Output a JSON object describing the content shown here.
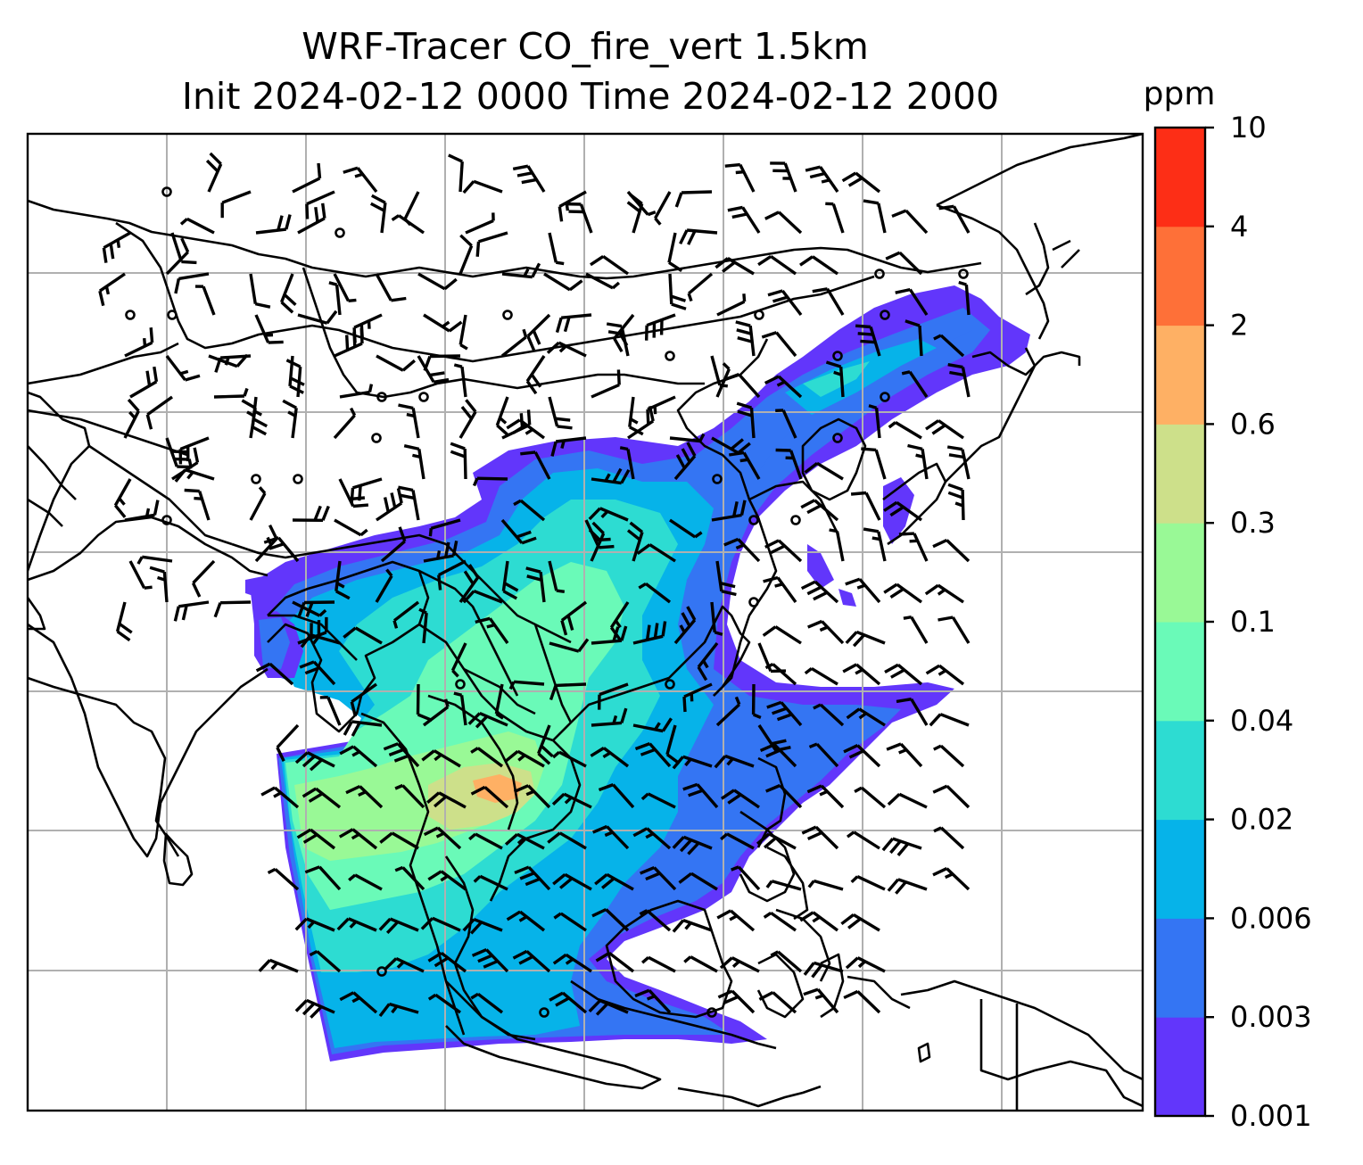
{
  "title": {
    "line1": "WRF-Tracer CO_fire_vert 1.5km",
    "line2": "Init 2024-02-12 0000 Time 2024-02-12 2000"
  },
  "colorbar": {
    "unit": "ppm",
    "levels": [
      "0.001",
      "0.003",
      "0.006",
      "0.02",
      "0.04",
      "0.1",
      "0.3",
      "0.6",
      "2",
      "4",
      "10"
    ],
    "colors": [
      "#6236fb",
      "#3475f3",
      "#06b3e9",
      "#2ddcd2",
      "#6afab8",
      "#99f996",
      "#cde08a",
      "#feb064",
      "#fe7038",
      "#fd2e16"
    ]
  },
  "map": {
    "field": "CO_fire_vert",
    "level": "1.5km",
    "colormap": "rainbow",
    "gridlines": true,
    "wind_barbs": true
  }
}
